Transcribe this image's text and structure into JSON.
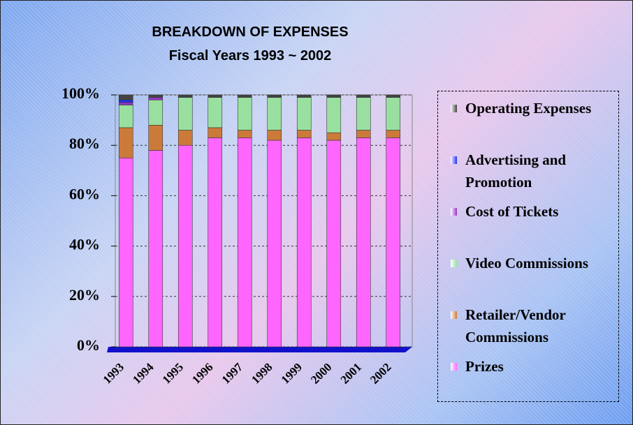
{
  "chart_data": {
    "type": "stacked-bar",
    "title": "BREAKDOWN OF EXPENSES",
    "subtitle": "Fiscal Years 1993 ~ 2002",
    "categories": [
      "1993",
      "1994",
      "1995",
      "1996",
      "1997",
      "1998",
      "1999",
      "2000",
      "2001",
      "2002"
    ],
    "series": [
      {
        "name": "Prizes",
        "color": "#ff66ff",
        "values": [
          75,
          78,
          80,
          83,
          83,
          82,
          83,
          82,
          83,
          83
        ]
      },
      {
        "name": "Retailer/Vendor Commissions",
        "color": "#cc7a3a",
        "values": [
          12,
          10,
          6,
          4,
          3,
          4,
          3,
          3,
          3,
          3
        ]
      },
      {
        "name": "Video Commissions",
        "color": "#99e0a0",
        "values": [
          9,
          10,
          13,
          12,
          13,
          13,
          13,
          14,
          13,
          13
        ]
      },
      {
        "name": "Cost of Tickets",
        "color": "#9933cc",
        "values": [
          1,
          1,
          0,
          0,
          0,
          0,
          0,
          0,
          0,
          0
        ]
      },
      {
        "name": "Advertising and Promotion",
        "color": "#2233ee",
        "values": [
          1,
          0,
          0,
          0,
          0,
          0,
          0,
          0,
          0,
          0
        ]
      },
      {
        "name": "Operating Expenses",
        "color": "#444444",
        "values": [
          2,
          1,
          1,
          1,
          1,
          1,
          1,
          1,
          1,
          1
        ]
      }
    ],
    "ylim": [
      0,
      100
    ],
    "yticks": [
      {
        "value": 0,
        "label": "0%"
      },
      {
        "value": 20,
        "label": "20%"
      },
      {
        "value": 40,
        "label": "40%"
      },
      {
        "value": 60,
        "label": "60%"
      },
      {
        "value": 80,
        "label": "80%"
      },
      {
        "value": 100,
        "label": "100%"
      }
    ],
    "grid": true
  }
}
